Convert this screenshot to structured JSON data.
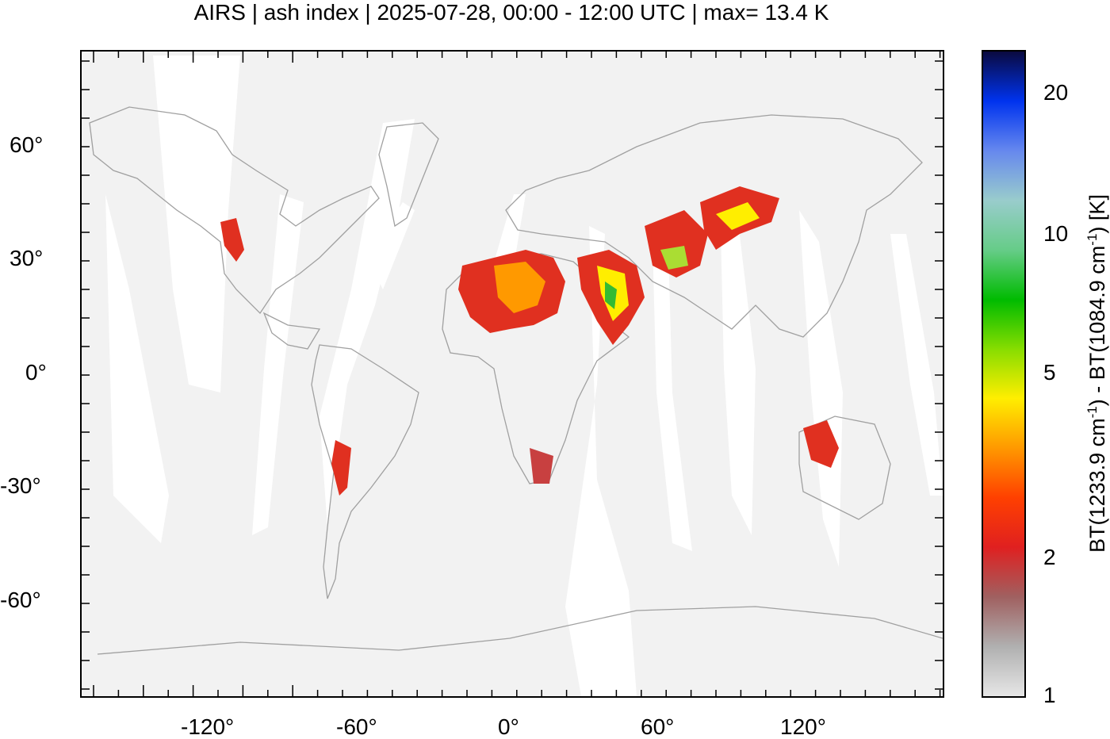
{
  "title": "AIRS | ash index | 2025-07-28, 00:00 - 12:00 UTC | max= 13.4 K",
  "map": {
    "x_ticks": [
      "-120°",
      "-60°",
      "0°",
      "60°",
      "120°"
    ],
    "y_ticks": [
      "60°",
      "30°",
      "0°",
      "-30°",
      "-60°"
    ],
    "background_color": "#f2f2f2",
    "swath_gap_color": "#ffffff",
    "coastline_color": "#a0a0a0"
  },
  "colorbar": {
    "ticks": [
      "20",
      "10",
      "5",
      "2",
      "1"
    ],
    "label_parts": {
      "p1": "BT(1233.9 cm",
      "sup1": "-1",
      "p2": ") - BT(1084.9 cm",
      "sup2": "-1",
      "p3": ") [K]"
    },
    "colors": [
      "#e6e6e6",
      "#b0b0b0",
      "#a06060",
      "#e02020",
      "#ff4000",
      "#ff9900",
      "#ffee00",
      "#88dd00",
      "#00bb00",
      "#66cc88",
      "#99cccc",
      "#6688ee",
      "#0033ee",
      "#0a0a40"
    ]
  }
}
